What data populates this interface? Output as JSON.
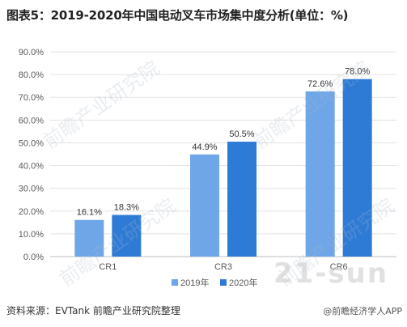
{
  "title": "图表5：2019-2020年中国电动叉车市场集中度分析(单位：%)",
  "source": "资料来源：EVTank 前瞻产业研究院整理",
  "watermark": "@前瞻经济学人APP",
  "watermark_sun": "21-sun",
  "watermark_logo": "前瞻产业研究院",
  "chart_data": {
    "type": "bar",
    "title": "图表5：2019-2020年中国电动叉车市场集中度分析(单位：%)",
    "categories": [
      "CR1",
      "CR3",
      "CR6"
    ],
    "series": [
      {
        "name": "2019年",
        "values": [
          16.1,
          44.9,
          72.6
        ],
        "labels": [
          "16.1%",
          "44.9%",
          "72.6%"
        ],
        "color": "#6ea6e8"
      },
      {
        "name": "2020年",
        "values": [
          18.3,
          50.5,
          78.0
        ],
        "labels": [
          "18.3%",
          "50.5%",
          "78.0%"
        ],
        "color": "#2e7bd6"
      }
    ],
    "ylim": [
      0,
      90
    ],
    "yticks": [
      "0.0%",
      "10.0%",
      "20.0%",
      "30.0%",
      "40.0%",
      "50.0%",
      "60.0%",
      "70.0%",
      "80.0%",
      "90.0%"
    ],
    "grid": true,
    "legend": "bottom-center"
  }
}
